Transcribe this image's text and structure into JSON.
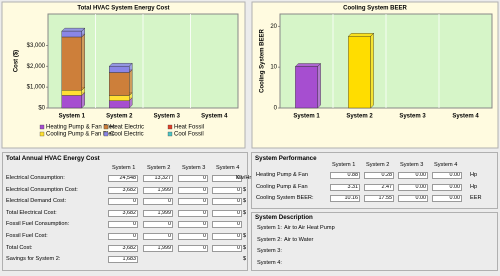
{
  "chart_data": [
    {
      "type": "bar",
      "stacked": true,
      "title": "Total HVAC System Energy Cost",
      "y_label": "Cost ($)",
      "categories": [
        "System 1",
        "System 2",
        "System 3",
        "System 4"
      ],
      "series": [
        {
          "name": "Heating Pump & Fan Elec",
          "color": "#a64ed0",
          "values": [
            600,
            350,
            0,
            0
          ]
        },
        {
          "name": "Cooling Pump & Fan Elec",
          "color": "#ffe033",
          "values": [
            250,
            250,
            0,
            0
          ]
        },
        {
          "name": "Heat Electric",
          "color": "#cd7f3a",
          "values": [
            2550,
            1100,
            0,
            0
          ]
        },
        {
          "name": "Cool Electric",
          "color": "#8a86e6",
          "values": [
            280,
            300,
            0,
            0
          ]
        },
        {
          "name": "Heat Fossil",
          "color": "#e0402a",
          "values": [
            0,
            0,
            0,
            0
          ]
        },
        {
          "name": "Cool Fossil",
          "color": "#4fc4c4",
          "values": [
            0,
            0,
            0,
            0
          ]
        }
      ],
      "ylim": [
        0,
        4500
      ],
      "yticks": [
        {
          "value": 0,
          "label": "$0"
        },
        {
          "value": 1000,
          "label": "$1,000"
        },
        {
          "value": 2000,
          "label": "$2,000"
        },
        {
          "value": 3000,
          "label": "$3,000"
        }
      ]
    },
    {
      "type": "bar",
      "title": "Cooling System BEER",
      "y_label": "Cooling System BEER",
      "categories": [
        "System 1",
        "System 2",
        "System 3",
        "System 4"
      ],
      "values": [
        10.16,
        17.55,
        0,
        0
      ],
      "colors": [
        "#a64ed0",
        "#ffdd00",
        "#a64ed0",
        "#ffdd00"
      ],
      "ylim": [
        0,
        23
      ],
      "yticks": [
        0,
        10,
        20
      ]
    }
  ],
  "energy_cost": {
    "title": "Total Annual HVAC Energy Cost",
    "columns": [
      "System 1",
      "System 2",
      "System 3",
      "System 4"
    ],
    "rows": [
      {
        "label": "Electrical Consumption:",
        "values": [
          "24,548",
          "13,327",
          "0",
          "0"
        ],
        "unit": "Kw/Hr"
      },
      {
        "label": "Electrical Consumption Cost:",
        "values": [
          "3,682",
          "1,999",
          "0",
          "0"
        ],
        "unit": "$"
      },
      {
        "label": "Electrical Demand Cost:",
        "values": [
          "0",
          "0",
          "0",
          "0"
        ],
        "unit": "$"
      },
      {
        "label": "Total Electrical Cost:",
        "values": [
          "3,682",
          "1,999",
          "0",
          "0"
        ],
        "unit": "$"
      },
      {
        "label": "Fossil Fuel Consumption:",
        "values": [
          "0",
          "0",
          "0",
          "0"
        ]
      },
      {
        "label": "Fossil Fuel Cost:",
        "values": [
          "0",
          "0",
          "0",
          "0"
        ],
        "unit": "$"
      },
      {
        "label": "Total Cost:",
        "values": [
          "3,682",
          "1,999",
          "0",
          "0"
        ],
        "unit": "$"
      },
      {
        "label": "Savings for System 2:",
        "values": [
          "1,683"
        ],
        "unit": "$"
      }
    ]
  },
  "performance": {
    "title": "System Performance",
    "columns": [
      "System 1",
      "System 2",
      "System 3",
      "System 4"
    ],
    "rows": [
      {
        "label": "Heating Pump & Fan",
        "values": [
          "0.88",
          "0.28",
          "0.00",
          "0.00"
        ],
        "unit": "Hp"
      },
      {
        "label": "Cooling Pump & Fan",
        "values": [
          "3.31",
          "2.47",
          "0.00",
          "0.00"
        ],
        "unit": "Hp"
      },
      {
        "label": "Cooling System BEER:",
        "values": [
          "10.16",
          "17.55",
          "0.00",
          "0.00"
        ],
        "unit": "EER"
      }
    ]
  },
  "description": {
    "title": "System Description",
    "rows": [
      {
        "label": "System 1:",
        "value": "Air to Air Heat Pump"
      },
      {
        "label": "System 2:",
        "value": "Air to Water"
      },
      {
        "label": "System 3:"
      },
      {
        "label": "System 4:"
      }
    ]
  }
}
